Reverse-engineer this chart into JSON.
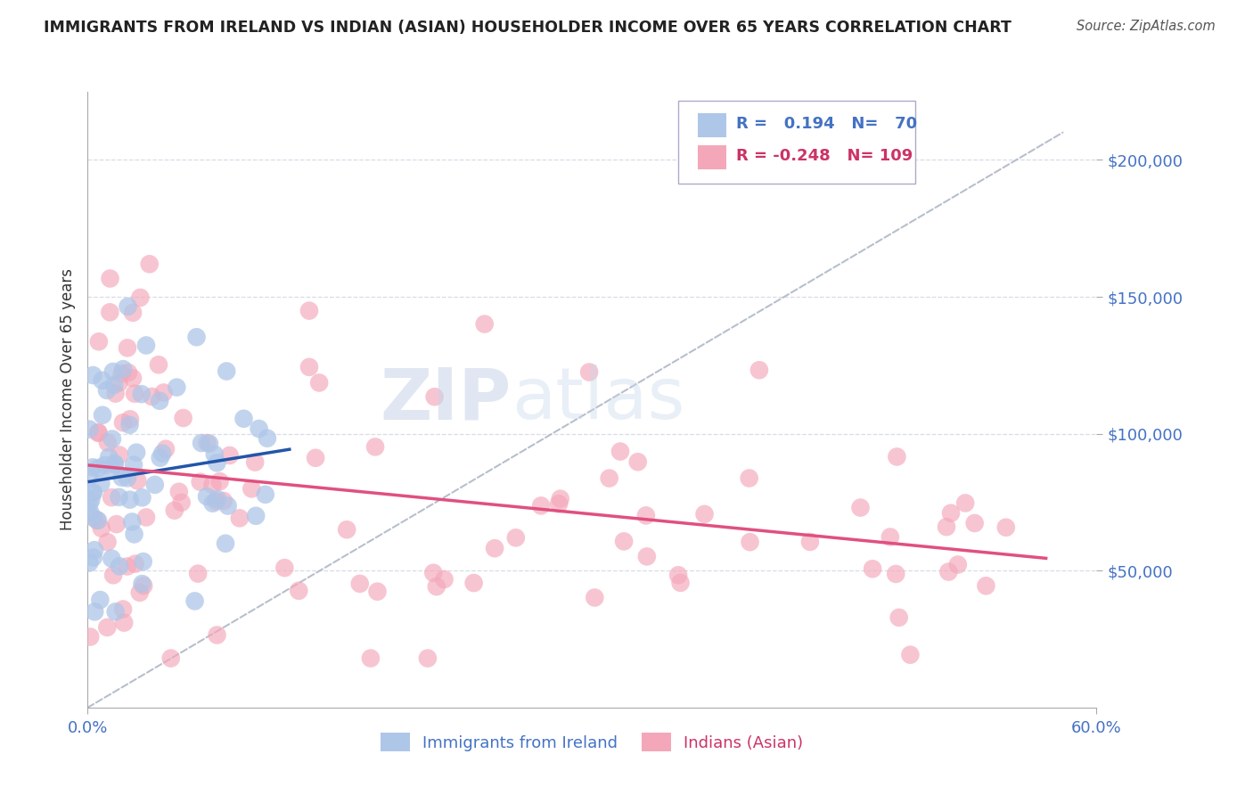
{
  "title": "IMMIGRANTS FROM IRELAND VS INDIAN (ASIAN) HOUSEHOLDER INCOME OVER 65 YEARS CORRELATION CHART",
  "source": "Source: ZipAtlas.com",
  "ylabel": "Householder Income Over 65 years",
  "xlim": [
    0.0,
    0.6
  ],
  "ylim": [
    0,
    220000
  ],
  "legend_R_ireland": "0.194",
  "legend_N_ireland": "70",
  "legend_R_indian": "-0.248",
  "legend_N_indian": "109",
  "color_ireland": "#aec6e8",
  "color_indian": "#f4a7b9",
  "color_ireland_line": "#2255aa",
  "color_indian_line": "#e05080",
  "color_ref_line": "#b0b8c8",
  "background_color": "#ffffff",
  "watermark_zip": "ZIP",
  "watermark_atlas": "atlas",
  "title_color": "#222222",
  "axis_label_color": "#333333",
  "tick_color": "#4472c4",
  "grid_color": "#d8dce8",
  "legend_text_color_ireland": "#4472c4",
  "legend_text_color_indian": "#cc3366"
}
